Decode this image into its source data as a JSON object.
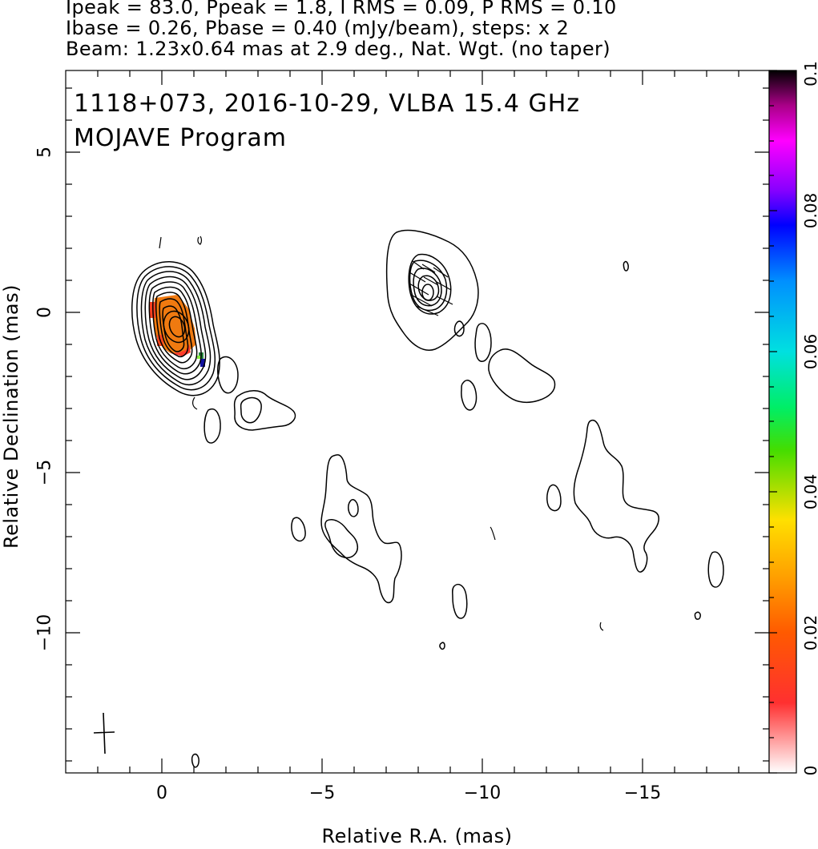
{
  "header": {
    "line1": "Ipeak = 83.0, Ppeak = 1.8, I RMS = 0.09, P RMS = 0.10",
    "line2": "Ibase = 0.26, Pbase = 0.40 (mJy/beam), steps: x 2",
    "line3": "Beam: 1.23x0.64 mas at 2.9 deg., Nat. Wgt. (no taper)"
  },
  "plot": {
    "title_line1": "1118+073, 2016-10-29, VLBA 15.4 GHz",
    "title_line2": "MOJAVE Program",
    "ylabel": "Relative Declination (mas)",
    "xlabel": "Relative R.A. (mas)",
    "y_ticks": [
      "5",
      "0",
      "−5",
      "−10"
    ],
    "x_ticks": [
      "0",
      "−5",
      "−10",
      "−15"
    ],
    "colorbar_ticks": [
      "0.1",
      "0.08",
      "0.06",
      "0.04",
      "0.02",
      "0"
    ],
    "colors": {
      "axis": "#000000",
      "contour": "#000000",
      "core_pol": "#f07a10"
    }
  }
}
